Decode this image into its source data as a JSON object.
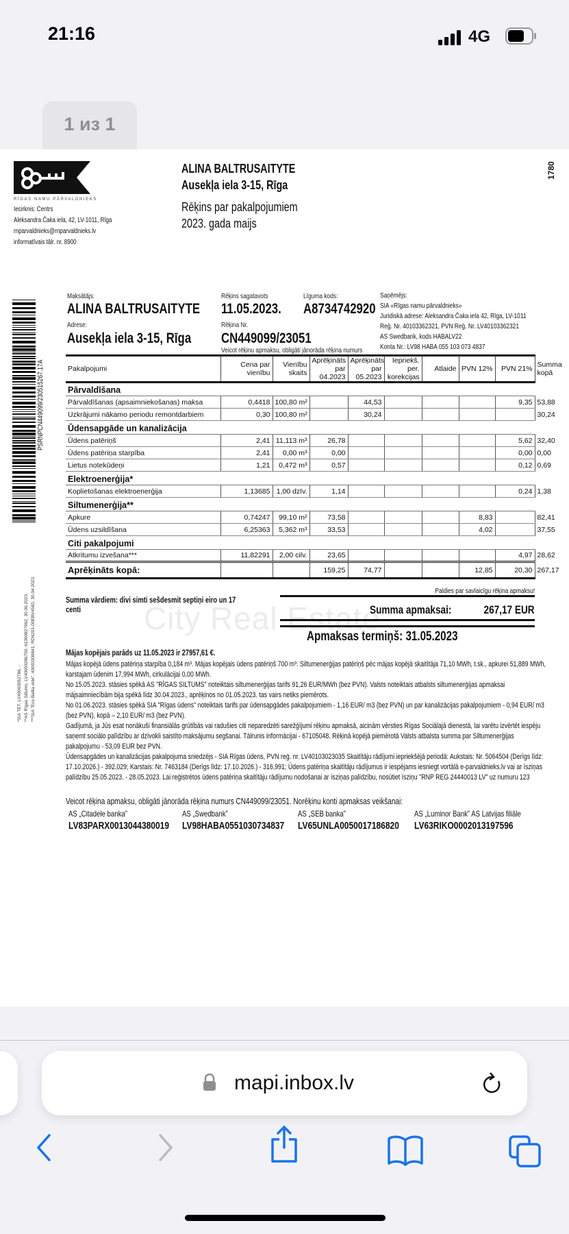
{
  "status_bar": {
    "time": "21:16",
    "network": "4G"
  },
  "pager": {
    "label": "1 из 1"
  },
  "document": {
    "logo_text": "RĪGAS NAMU PĀRVALDNIEKS",
    "issuer": {
      "district": "Iecirknis: Centrs",
      "address": "Aleksandra Čaka iela, 42, LV-1011, Rīga",
      "email": "rnparvaldnieks@rnparvaldnieks.lv",
      "phone": "informatīvais tālr. nr. 8900"
    },
    "recipient_name": "ALINA BALTRUSAITYTE",
    "recipient_address": "Ausekļa iela 3-15, Rīga",
    "title": "Rēķins par pakalpojumiem",
    "period": "2023. gada maijs",
    "corner_number": "1780",
    "payer_label": "Maksātājs:",
    "payer": "ALINA BALTRUSAITYTE",
    "address_label": "Adrese:",
    "address": "Ausekļa iela 3-15, Rīga",
    "prepared_label": "Rēķins sagatavots",
    "prepared": "11.05.2023.",
    "contract_label": "Līguma kods:",
    "contract": "A8734742920",
    "invoice_label": "Rēķina Nr.",
    "invoice": "CN449099/23051",
    "invoice_note": "Veicot rēķinu apmaksu, obligāti jānorāda rēķina numurs",
    "receiver": {
      "label": "Saņēmējs:",
      "lines": [
        "SIA «Rīgas namu pārvaldnieks»",
        "Juridiskā adrese: Aleksandra Čaka iela 42, Rīga, LV-1011",
        "Reģ. Nr. 40103362321, PVN Reģ. Nr. LV40103362321",
        "AS Swedbank, kods HABALV22",
        "Konta Nr.: LV98 HABA 055 103 073 4837"
      ]
    },
    "barcode_text": "PSRNPCN449099/230515267.17A",
    "footnotes": [
      "*SIA TET, LV40003052786, -",
      "**AS Rīgas Siltums, LV40003286750, 61000827962, 30.06.2023.",
      "***SIA \"Eco Baltia vide\", 40003309841, RD6201-00EBV4582, 30.04.2023."
    ],
    "table": {
      "headers": [
        "Pakalpojumi",
        "Cena par vienību",
        "Vienību skaits",
        "Aprēķināts par 04.2023",
        "Aprēķināts par 05.2023",
        "Iepriekš. per. korekcijas",
        "Atlaide",
        "PVN 12%",
        "PVN 21%",
        "Summa kopā"
      ],
      "rows": [
        {
          "section": "Pārvaldīšana"
        },
        {
          "cells": [
            "Pārvaldīšanas (apsaimniekošanas) maksa",
            "0,4418",
            "100,80 m²",
            "",
            "44,53",
            "",
            "",
            "",
            "9,35",
            "53,88"
          ]
        },
        {
          "cells": [
            "Uzkrājumi nākamo periodu remontdarbiem",
            "0,30",
            "100,80 m²",
            "",
            "30,24",
            "",
            "",
            "",
            "",
            "30,24"
          ]
        },
        {
          "section": "Ūdensapgāde un kanalizācija"
        },
        {
          "cells": [
            "Ūdens patēriņš",
            "2,41",
            "11,113 m³",
            "26,78",
            "",
            "",
            "",
            "",
            "5,62",
            "32,40"
          ]
        },
        {
          "cells": [
            "Ūdens patēriņa starpība",
            "2,41",
            "0,00 m³",
            "0,00",
            "",
            "",
            "",
            "",
            "0,00",
            "0,00"
          ]
        },
        {
          "cells": [
            "Lietus notekūdeņi",
            "1,21",
            "0,472 m³",
            "0,57",
            "",
            "",
            "",
            "",
            "0,12",
            "0,69"
          ]
        },
        {
          "section": "Elektroenerģija*"
        },
        {
          "cells": [
            "Koplietošanas elektroenerģija",
            "1,13685",
            "1,00 dzīv.",
            "1,14",
            "",
            "",
            "",
            "",
            "0,24",
            "1,38"
          ]
        },
        {
          "section": "Siltumenerģija**"
        },
        {
          "cells": [
            "Apkure",
            "0,74247",
            "99,10 m²",
            "73,58",
            "",
            "",
            "",
            "8,83",
            "",
            "82,41"
          ]
        },
        {
          "cells": [
            "Ūdens uzsildīšana",
            "6,25363",
            "5,362 m³",
            "33,53",
            "",
            "",
            "",
            "4,02",
            "",
            "37,55"
          ]
        },
        {
          "section": "Citi pakalpojumi"
        },
        {
          "cells": [
            "Atkritumu izvešana***",
            "11,82291",
            "2,00 cilv.",
            "23,65",
            "",
            "",
            "",
            "",
            "4,97",
            "28,62"
          ]
        },
        {
          "total": true,
          "cells": [
            "Aprēķināts kopā:",
            "",
            "",
            "159,25",
            "74,77",
            "",
            "",
            "12,85",
            "20,30",
            "267,17"
          ]
        }
      ]
    },
    "thanks": "Paldies par savlaicīgu rēķina apmaksu!",
    "amount_words": "Summa vārdiem: divi simti sešdesmit septiņi eiro un 17 centi",
    "amount_label": "Summa apmaksai:",
    "amount": "267,17 EUR",
    "due": "Apmaksas termiņš: 31.05.2023",
    "watermark": "City Real Estate",
    "debt": "Mājas kopējais parāds uz 11.05.2023 ir 27957,61 €.",
    "notes": [
      "Mājas kopējā ūdens patēriņa starpība 0,184 m³. Mājas kopējais ūdens patēriņš 700 m³. Siltumenerģijas patēriņš pēc mājas kopējā skaitītāja 71,10 MWh, t.sk., apkurei 51,889 MWh, karstajam ūdenim 17,994 MWh, cirkulācijai 0,00 MWh.",
      "No 15.05.2023. stāsies spēkā AS \"RĪGAS SILTUMS\" noteiktais siltumenerģijas tarifs 91,26 EUR/MWh (bez PVN). Valsts noteiktais atbalsts siltumenerģijas apmaksai mājsaimniecībām bija spēkā līdz 30.04.2023., aprēķinos no 01.05.2023. tas vairs netiks piemērots.",
      "No 01.06.2023. stāsies spēkā SIA \"Rīgas ūdens\" noteiktais tarifs par ūdensapgādes pakalpojumiem - 1,16 EUR/ m3 (bez PVN) un par kanalizācijas pakalpojumiem - 0,94 EUR/ m3 (bez PVN), kopā – 2,10 EUR/ m3 (bez PVN).",
      "Gadījumā, ja Jūs esat nonākuši finansiālās grūtībās vai radušies citi neparedzēti sarežģījumi rēķinu apmaksā, aicinām vērsties Rīgas Sociālajā dienestā, lai varētu izvērtēt iespēju saņemt sociālo palīdzību ar dzīvokli saistīto maksājumu segšanai. Tālrunis informācijai - 67105048. Rēķinā kopējā piemērotā Valsts atbalsta summa par Siltumenerģijas pakalpojumu - 53,09 EUR bez PVN.",
      "Ūdensapgādes un kanalizācijas pakalpojuma sniedzējs - SIA Rīgas ūdens, PVN reģ. nr. LV40103023035 Skaitītāju rādījumi iepriekšējā periodā: Aukstais: Nr. 5064504 (Derīgs līdz: 17.10.2026.) - 392,029; Karstais: Nr. 7463184 (Derīgs līdz: 17.10.2026.) - 316,991;  Ūdens patēriņa skaitītāju rādījumus ir iespējams iesniegt vortālā e-parvaldnieks.lv vai ar īsziņas palīdzību 25.05.2023. - 28.05.2023. Lai reģistrētos ūdens patēriņa skaitītāju rādījumu nodošanai ar īsziņas palīdzību, nosūtiet īsziņu \"RNP REG 24440013 LV\" uz numuru 123"
    ],
    "payment_note": "Veicot rēķina apmaksu, obligāti jānorāda rēķina numurs CN449099/23051. Norēķinu konti apmaksas veikšanai:",
    "banks": [
      {
        "name": "AS „Citadele banka”",
        "iban": "LV83PARX0013044380019"
      },
      {
        "name": "AS „Swedbank”",
        "iban": "LV98HABA0551030734837"
      },
      {
        "name": "AS „SEB banka”",
        "iban": "LV65UNLA0050017186820"
      },
      {
        "name": "AS „Luminor Bank” AS Latvijas filiāle",
        "iban": "LV63RIKO0002013197596"
      }
    ]
  },
  "browser": {
    "url": "mapi.inbox.lv",
    "accent": "#1a73e8"
  }
}
